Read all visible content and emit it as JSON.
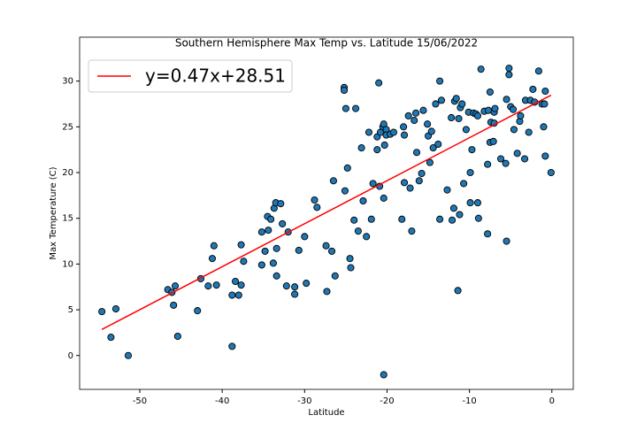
{
  "chart_data": {
    "type": "scatter",
    "title": "Southern Hemisphere Max Temp vs. Latitude 15/06/2022",
    "x_label": "Latitude",
    "y_label": "Max Temperature (C)",
    "xlim": [
      -57.3,
      2.6
    ],
    "ylim": [
      -3.7,
      34.8
    ],
    "xticks": [
      -50,
      -40,
      -30,
      -20,
      -10,
      0
    ],
    "yticks": [
      0,
      5,
      10,
      15,
      20,
      25,
      30
    ],
    "legend_position": "upper left",
    "point_color": "#1f77b4",
    "point_edge_color": "#000000",
    "x": [
      -54.6,
      -53.5,
      -52.9,
      -51.4,
      -46.6,
      -46.1,
      -45.7,
      -45.9,
      -45.4,
      -43.0,
      -42.6,
      -41.7,
      -41.2,
      -41.0,
      -40.7,
      -38.8,
      -38.8,
      -38.4,
      -38.0,
      -37.7,
      -37.7,
      -37.4,
      -35.2,
      -34.5,
      -34.4,
      -35.2,
      -34.8,
      -34.1,
      -33.7,
      -33.5,
      -32.9,
      -33.4,
      -33.8,
      -33.4,
      -32.7,
      -32.0,
      -32.2,
      -31.2,
      -31.2,
      -30.7,
      -30.0,
      -29.8,
      -28.8,
      -28.5,
      -27.4,
      -27.3,
      -26.7,
      -26.5,
      -26.3,
      -25.2,
      -25.2,
      -25.0,
      -25.1,
      -24.8,
      -24.5,
      -24.4,
      -24.0,
      -23.8,
      -23.5,
      -23.1,
      -22.9,
      -22.5,
      -22.2,
      -21.9,
      -21.7,
      -21.2,
      -21.2,
      -21.0,
      -20.9,
      -20.8,
      -20.5,
      -20.4,
      -20.4,
      -20.4,
      -20.3,
      -20.1,
      -20.1,
      -19.6,
      -19.2,
      -18.2,
      -18.0,
      -17.9,
      -17.9,
      -17.4,
      -17.2,
      -17.0,
      -16.7,
      -16.5,
      -16.4,
      -16.1,
      -15.8,
      -15.6,
      -15.1,
      -15.0,
      -14.8,
      -14.6,
      -14.4,
      -14.1,
      -13.8,
      -13.6,
      -13.6,
      -13.4,
      -12.7,
      -12.2,
      -12.1,
      -11.9,
      -11.8,
      -11.6,
      -11.4,
      -11.3,
      -11.2,
      -11.1,
      -10.9,
      -10.7,
      -10.4,
      -10.1,
      -9.9,
      -9.9,
      -9.7,
      -9.5,
      -9.2,
      -9.0,
      -8.9,
      -9.0,
      -8.6,
      -8.2,
      -7.8,
      -7.8,
      -7.7,
      -7.5,
      -7.5,
      -7.4,
      -7.1,
      -7.0,
      -7.0,
      -6.9,
      -6.2,
      -5.6,
      -5.5,
      -5.5,
      -5.2,
      -5.2,
      -5.0,
      -4.7,
      -4.6,
      -4.2,
      -3.9,
      -3.8,
      -3.3,
      -3.2,
      -2.8,
      -2.6,
      -2.3,
      -2.1,
      -1.6,
      -1.2,
      -1.0,
      -0.9,
      -0.8,
      -0.8,
      -0.1
    ],
    "y": [
      4.8,
      2.0,
      5.1,
      0,
      7.2,
      6.9,
      7.6,
      5.5,
      2.1,
      4.9,
      8.4,
      7.6,
      10.6,
      12.0,
      7.7,
      6.6,
      1.0,
      8.1,
      6.6,
      7.7,
      12.1,
      10.3,
      13.5,
      15.2,
      13.7,
      9.9,
      11.4,
      14.9,
      16.1,
      16.7,
      16.6,
      8.7,
      10.1,
      11.7,
      14.4,
      13.5,
      7.6,
      7.5,
      6.7,
      11.5,
      13.0,
      7.9,
      17.0,
      16.2,
      12.0,
      7.0,
      11.4,
      19.1,
      8.7,
      29.3,
      29.0,
      27.0,
      18.0,
      20.5,
      10.6,
      9.6,
      14.8,
      27.0,
      13.6,
      22.7,
      16.9,
      13.0,
      24.4,
      14.9,
      18.8,
      22.5,
      23.9,
      29.8,
      18.5,
      24.4,
      25.0,
      25.3,
      17.2,
      -2.1,
      23.0,
      24.7,
      24.1,
      24.2,
      24.4,
      14.9,
      25.0,
      24.1,
      18.9,
      26.2,
      18.3,
      13.6,
      25.7,
      26.5,
      22.2,
      19.1,
      19.9,
      26.8,
      25.3,
      24.0,
      21.1,
      24.5,
      22.7,
      27.5,
      23.1,
      14.9,
      30.0,
      27.9,
      18.1,
      26.0,
      14.8,
      16.1,
      27.8,
      28.1,
      7.1,
      25.9,
      15.4,
      27.1,
      27.5,
      18.8,
      24.7,
      26.6,
      16.7,
      20.0,
      22.5,
      26.5,
      26.4,
      26.2,
      15.0,
      16.7,
      31.3,
      26.7,
      13.3,
      20.9,
      26.8,
      28.8,
      23.3,
      25.5,
      23.4,
      25.4,
      26.6,
      27.0,
      21.5,
      21.0,
      12.5,
      28.0,
      31.4,
      30.7,
      27.2,
      26.9,
      24.7,
      22.1,
      25.6,
      26.2,
      21.5,
      27.9,
      24.4,
      27.9,
      29.1,
      27.7,
      31.1,
      27.5,
      25.0,
      27.5,
      28.9,
      21.8,
      20.0
    ],
    "regression": {
      "label": "y=0.47x+28.51",
      "color": "#ff0000",
      "x": [
        -54.6,
        -0.1
      ],
      "y": [
        2.85,
        28.46
      ]
    }
  }
}
